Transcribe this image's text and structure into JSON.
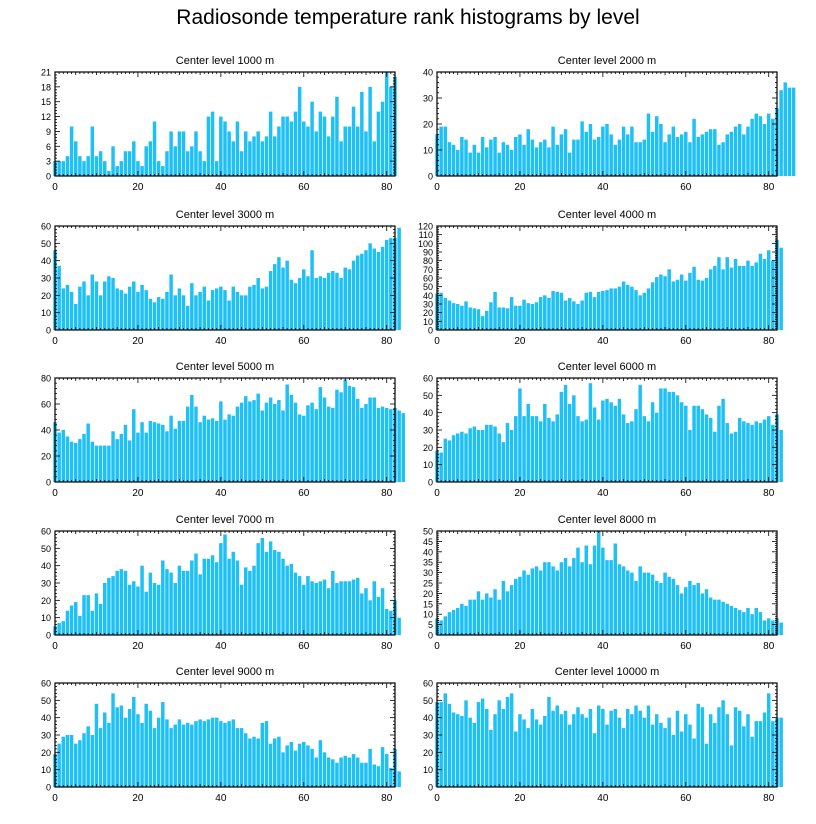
{
  "title": "Radiosonde temperature rank histograms by level",
  "colors": {
    "bar": "#1ec0f5",
    "axis": "#000000"
  },
  "chart_data": [
    {
      "type": "bar",
      "title": "Center level 1000 m",
      "x_start": 0,
      "xlim": [
        0,
        82
      ],
      "xticks": [
        0,
        20,
        40,
        60,
        80
      ],
      "ylim": [
        0,
        21
      ],
      "yticks": [
        0,
        3,
        6,
        9,
        12,
        15,
        18,
        21
      ],
      "values": [
        3,
        3,
        3,
        4,
        10,
        7,
        4,
        3,
        4,
        10,
        4,
        5,
        3,
        1,
        6,
        2,
        3,
        5,
        5,
        7,
        3,
        2,
        6,
        7,
        11,
        3,
        2,
        5,
        9,
        6,
        9,
        9,
        5,
        6,
        9,
        5,
        3,
        12,
        13,
        3,
        12,
        11,
        9,
        7,
        11,
        5,
        9,
        7,
        8,
        9,
        7,
        8,
        13,
        8,
        10,
        12,
        12,
        11,
        13,
        18,
        11,
        10,
        15,
        9,
        13,
        12,
        8,
        12,
        16,
        7,
        10,
        10,
        14,
        10,
        17,
        9,
        18,
        7,
        13,
        15,
        21,
        18,
        20
      ]
    },
    {
      "type": "bar",
      "title": "Center level 2000 m",
      "x_start": 0,
      "xlim": [
        0,
        82
      ],
      "xticks": [
        0,
        20,
        40,
        60,
        80
      ],
      "ylim": [
        0,
        40
      ],
      "yticks": [
        0,
        10,
        20,
        30,
        40
      ],
      "values": [
        16,
        19,
        19,
        13,
        12,
        10,
        15,
        14,
        9,
        12,
        9,
        15,
        11,
        14,
        15,
        9,
        13,
        12,
        10,
        15,
        16,
        12,
        18,
        14,
        11,
        13,
        14,
        11,
        19,
        12,
        16,
        18,
        9,
        14,
        14,
        21,
        17,
        20,
        14,
        15,
        19,
        20,
        16,
        12,
        14,
        19,
        16,
        19,
        13,
        13,
        14,
        24,
        17,
        23,
        20,
        13,
        16,
        19,
        15,
        16,
        17,
        13,
        22,
        15,
        16,
        17,
        18,
        18,
        12,
        13,
        16,
        17,
        19,
        20,
        16,
        19,
        22,
        24,
        23,
        20,
        24,
        22,
        26,
        33,
        36,
        34,
        34
      ]
    },
    {
      "type": "bar",
      "title": "Center level 3000 m",
      "x_start": 0,
      "xlim": [
        0,
        82
      ],
      "xticks": [
        0,
        20,
        40,
        60,
        80
      ],
      "ylim": [
        0,
        60
      ],
      "yticks": [
        0,
        10,
        20,
        30,
        40,
        50,
        60
      ],
      "values": [
        46,
        37,
        24,
        26,
        22,
        15,
        25,
        28,
        20,
        32,
        28,
        20,
        28,
        31,
        30,
        24,
        23,
        21,
        25,
        28,
        22,
        26,
        23,
        18,
        16,
        19,
        18,
        22,
        32,
        20,
        24,
        20,
        14,
        27,
        20,
        22,
        25,
        17,
        23,
        24,
        25,
        23,
        17,
        25,
        22,
        20,
        20,
        25,
        26,
        30,
        24,
        25,
        34,
        38,
        42,
        36,
        40,
        29,
        27,
        30,
        35,
        31,
        46,
        30,
        31,
        30,
        33,
        34,
        33,
        30,
        36,
        35,
        40,
        43,
        44,
        46,
        50,
        47,
        45,
        48,
        52,
        53,
        53,
        59
      ]
    },
    {
      "type": "bar",
      "title": "Center level 4000 m",
      "x_start": 0,
      "xlim": [
        0,
        82
      ],
      "xticks": [
        0,
        20,
        40,
        60,
        80
      ],
      "ylim": [
        0,
        120
      ],
      "yticks": [
        0,
        10,
        20,
        30,
        40,
        50,
        60,
        70,
        80,
        90,
        100,
        110,
        120
      ],
      "values": [
        42,
        43,
        37,
        34,
        31,
        30,
        28,
        33,
        26,
        25,
        24,
        16,
        22,
        32,
        44,
        26,
        26,
        25,
        38,
        28,
        28,
        35,
        31,
        30,
        32,
        38,
        40,
        37,
        45,
        44,
        43,
        34,
        37,
        33,
        30,
        34,
        43,
        44,
        38,
        44,
        45,
        46,
        48,
        48,
        50,
        56,
        52,
        50,
        46,
        40,
        43,
        48,
        55,
        61,
        64,
        62,
        70,
        56,
        58,
        64,
        57,
        66,
        73,
        58,
        57,
        60,
        70,
        74,
        84,
        70,
        84,
        72,
        82,
        74,
        74,
        80,
        74,
        78,
        88,
        82,
        92,
        80,
        104,
        95
      ]
    },
    {
      "type": "bar",
      "title": "Center level 5000 m",
      "x_start": 0,
      "xlim": [
        0,
        82
      ],
      "xticks": [
        0,
        20,
        40,
        60,
        80
      ],
      "ylim": [
        0,
        80
      ],
      "yticks": [
        0,
        20,
        40,
        60,
        80
      ],
      "values": [
        46,
        38,
        40,
        35,
        31,
        30,
        33,
        37,
        45,
        31,
        28,
        28,
        28,
        28,
        39,
        33,
        37,
        44,
        32,
        56,
        38,
        46,
        38,
        47,
        46,
        45,
        44,
        39,
        51,
        41,
        47,
        47,
        58,
        67,
        58,
        46,
        51,
        48,
        49,
        47,
        62,
        48,
        52,
        51,
        58,
        61,
        66,
        62,
        63,
        68,
        55,
        61,
        65,
        60,
        63,
        55,
        75,
        67,
        61,
        52,
        51,
        59,
        61,
        56,
        73,
        65,
        58,
        57,
        71,
        69,
        79,
        74,
        73,
        64,
        57,
        60,
        65,
        65,
        57,
        58,
        57,
        56,
        57,
        55,
        53
      ]
    },
    {
      "type": "bar",
      "title": "Center level 6000 m",
      "x_start": 0,
      "xlim": [
        0,
        82
      ],
      "xticks": [
        0,
        20,
        40,
        60,
        80
      ],
      "ylim": [
        0,
        60
      ],
      "yticks": [
        0,
        10,
        20,
        30,
        40,
        50,
        60
      ],
      "values": [
        18,
        17,
        25,
        24,
        27,
        28,
        29,
        28,
        31,
        32,
        30,
        30,
        33,
        33,
        32,
        28,
        23,
        34,
        30,
        38,
        54,
        38,
        45,
        38,
        38,
        35,
        45,
        37,
        35,
        39,
        52,
        56,
        45,
        50,
        38,
        35,
        36,
        57,
        43,
        36,
        47,
        48,
        46,
        44,
        48,
        39,
        34,
        35,
        42,
        56,
        38,
        35,
        46,
        40,
        54,
        54,
        52,
        52,
        50,
        46,
        44,
        30,
        44,
        44,
        42,
        39,
        37,
        29,
        44,
        48,
        34,
        28,
        29,
        37,
        35,
        34,
        33,
        35,
        34,
        36,
        38,
        33,
        39,
        30
      ]
    },
    {
      "type": "bar",
      "title": "Center level 7000 m",
      "x_start": 0,
      "xlim": [
        0,
        82
      ],
      "xticks": [
        0,
        20,
        40,
        60,
        80
      ],
      "ylim": [
        0,
        60
      ],
      "yticks": [
        0,
        10,
        20,
        30,
        40,
        50,
        60
      ],
      "values": [
        5,
        7,
        8,
        14,
        17,
        19,
        11,
        23,
        23,
        14,
        24,
        18,
        30,
        33,
        34,
        37,
        38,
        37,
        29,
        31,
        28,
        40,
        25,
        36,
        30,
        29,
        43,
        38,
        36,
        30,
        40,
        37,
        37,
        43,
        47,
        35,
        44,
        44,
        46,
        42,
        53,
        58,
        44,
        48,
        43,
        29,
        39,
        37,
        40,
        53,
        56,
        48,
        54,
        49,
        48,
        44,
        40,
        41,
        36,
        34,
        29,
        34,
        31,
        30,
        31,
        32,
        27,
        37,
        30,
        31,
        31,
        31,
        32,
        33,
        24,
        27,
        20,
        31,
        22,
        27,
        15,
        14,
        20,
        10
      ]
    },
    {
      "type": "bar",
      "title": "Center level 8000 m",
      "x_start": 0,
      "xlim": [
        0,
        82
      ],
      "xticks": [
        0,
        20,
        40,
        60,
        80
      ],
      "ylim": [
        0,
        50
      ],
      "yticks": [
        0,
        5,
        10,
        15,
        20,
        25,
        30,
        35,
        40,
        45,
        50
      ],
      "values": [
        8,
        7,
        9,
        11,
        12,
        13,
        15,
        14,
        17,
        17,
        21,
        17,
        20,
        18,
        22,
        17,
        26,
        21,
        24,
        27,
        28,
        31,
        29,
        32,
        33,
        31,
        35,
        35,
        33,
        31,
        35,
        37,
        33,
        37,
        42,
        35,
        43,
        34,
        43,
        50,
        42,
        36,
        36,
        44,
        34,
        33,
        31,
        30,
        26,
        33,
        30,
        30,
        29,
        26,
        25,
        30,
        28,
        27,
        24,
        20,
        23,
        26,
        24,
        25,
        20,
        22,
        18,
        17,
        17,
        16,
        15,
        14,
        13,
        12,
        11,
        13,
        10,
        13,
        11,
        7,
        8,
        7,
        8,
        6
      ]
    },
    {
      "type": "bar",
      "title": "Center level 9000 m",
      "x_start": 0,
      "xlim": [
        0,
        82
      ],
      "xticks": [
        0,
        20,
        40,
        60,
        80
      ],
      "ylim": [
        0,
        60
      ],
      "yticks": [
        0,
        10,
        20,
        30,
        40,
        50,
        60
      ],
      "values": [
        19,
        25,
        29,
        30,
        30,
        25,
        27,
        31,
        35,
        30,
        48,
        34,
        43,
        37,
        54,
        46,
        47,
        40,
        45,
        52,
        42,
        37,
        48,
        44,
        34,
        40,
        49,
        39,
        34,
        36,
        39,
        36,
        37,
        36,
        38,
        39,
        38,
        39,
        40,
        40,
        38,
        37,
        38,
        39,
        34,
        34,
        31,
        28,
        29,
        28,
        37,
        38,
        25,
        28,
        29,
        20,
        24,
        26,
        21,
        25,
        26,
        24,
        22,
        17,
        27,
        20,
        17,
        16,
        14,
        17,
        18,
        17,
        19,
        17,
        14,
        14,
        22,
        13,
        12,
        23,
        19,
        11,
        22,
        9
      ]
    },
    {
      "type": "bar",
      "title": "Center level 10000 m",
      "x_start": 0,
      "xlim": [
        0,
        82
      ],
      "xticks": [
        0,
        20,
        40,
        60,
        80
      ],
      "ylim": [
        0,
        60
      ],
      "yticks": [
        0,
        10,
        20,
        30,
        40,
        50,
        60
      ],
      "values": [
        49,
        49,
        54,
        48,
        43,
        42,
        41,
        50,
        40,
        37,
        49,
        51,
        45,
        33,
        42,
        50,
        45,
        52,
        54,
        32,
        42,
        39,
        34,
        45,
        39,
        36,
        41,
        52,
        44,
        47,
        42,
        44,
        36,
        42,
        46,
        42,
        40,
        45,
        31,
        47,
        45,
        36,
        44,
        45,
        40,
        34,
        45,
        42,
        47,
        44,
        40,
        47,
        36,
        42,
        37,
        34,
        40,
        30,
        44,
        32,
        42,
        36,
        28,
        48,
        46,
        25,
        42,
        37,
        46,
        50,
        42,
        24,
        46,
        44,
        35,
        42,
        29,
        38,
        38,
        43,
        54,
        38,
        40,
        40
      ]
    }
  ]
}
